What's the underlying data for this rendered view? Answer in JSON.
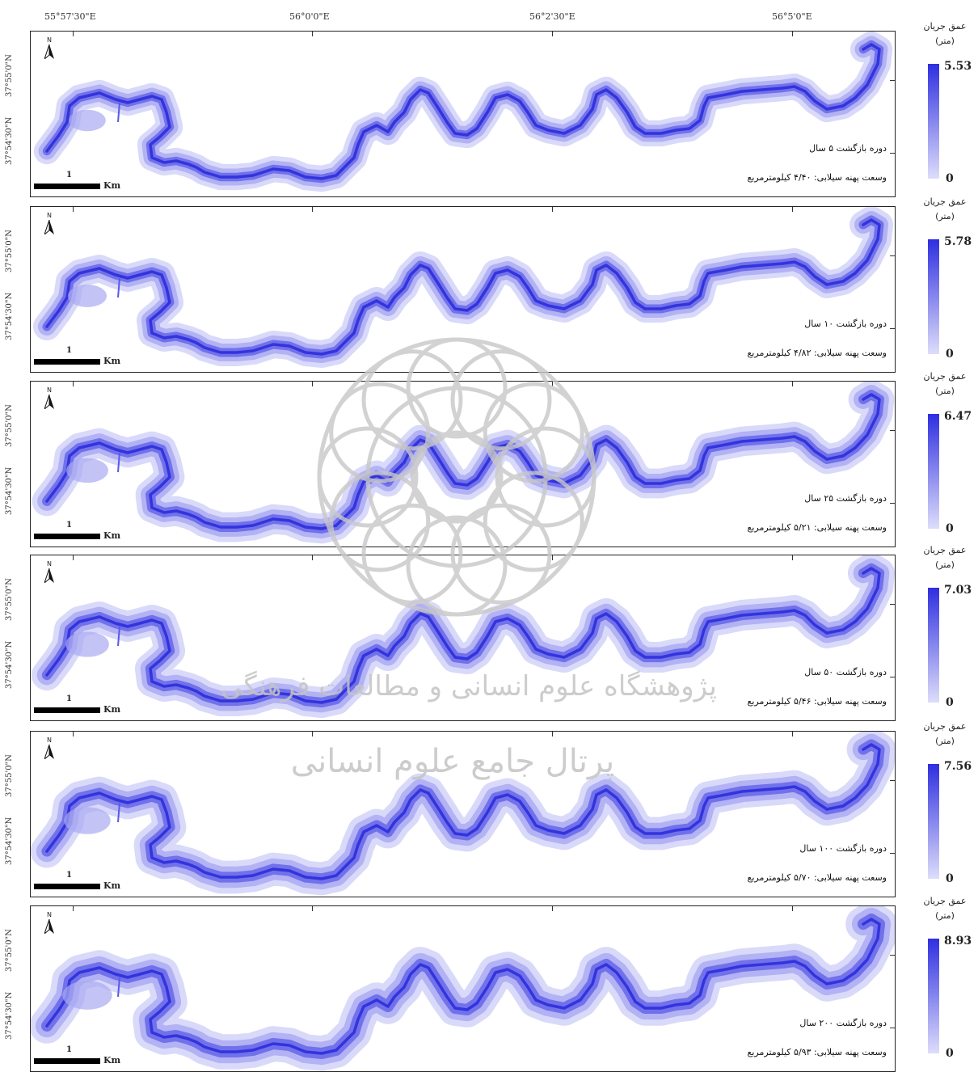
{
  "longitude_labels": [
    "55°57'30\"E",
    "56°0'0\"E",
    "56°2'30\"E",
    "56°5'0\"E"
  ],
  "latitude_labels": [
    "37°55'0\"N",
    "37°54'30\"N"
  ],
  "north_label": "N",
  "scale_bar": {
    "value": "1",
    "unit": "Km"
  },
  "legend_title_line1": "عمق جریان",
  "legend_title_line2": "(متر)",
  "legend_min": "0",
  "colors": {
    "deep": "#2f2fe0",
    "shallow": "#ddddfb",
    "frame": "#222222"
  },
  "panels": [
    {
      "return_period": "دوره بازگشت ۵ سال",
      "flood_area": "وسعت پهنه سیلابی: ۴/۴۰ کیلومترمربع",
      "max_depth": "5.53"
    },
    {
      "return_period": "دوره بازگشت ۱۰ سال",
      "flood_area": "وسعت پهنه سیلابی: ۴/۸۲ کیلومترمربع",
      "max_depth": "5.78"
    },
    {
      "return_period": "دوره بازگشت ۲۵ سال",
      "flood_area": "وسعت پهنه سیلابی: ۵/۲۱ کیلومترمربع",
      "max_depth": "6.47"
    },
    {
      "return_period": "دوره بازگشت ۵۰ سال",
      "flood_area": "وسعت پهنه سیلابی: ۵/۴۶ کیلومترمربع",
      "max_depth": "7.03"
    },
    {
      "return_period": "دوره بازگشت ۱۰۰ سال",
      "flood_area": "وسعت پهنه سیلابی: ۵/۷۰ کیلومترمربع",
      "max_depth": "7.56"
    },
    {
      "return_period": "دوره بازگشت ۲۰۰ سال",
      "flood_area": "وسعت پهنه سیلابی: ۵/۹۳ کیلومترمربع",
      "max_depth": "8.93"
    }
  ],
  "watermark_line1": "پژوهشگاه علوم انسانی و مطالعات فرهنگی",
  "watermark_line2": "پرتال جامع علوم انسانی"
}
